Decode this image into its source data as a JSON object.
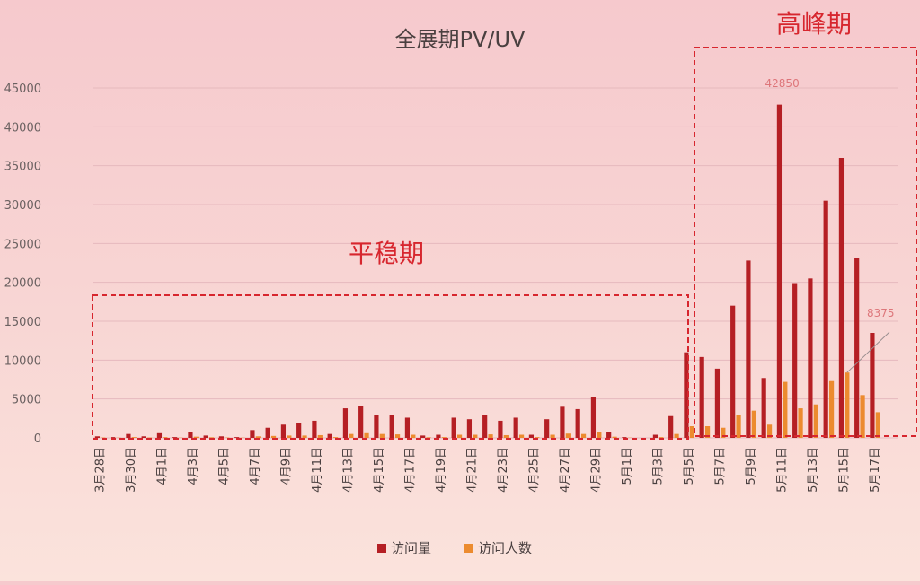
{
  "chart_data": {
    "type": "bar",
    "title": "全展期PV/UV",
    "xlabel": "",
    "ylabel": "",
    "ylim": [
      0,
      45000
    ],
    "yticks": [
      "0",
      "5000",
      "10000",
      "15000",
      "20000",
      "25000",
      "30000",
      "35000",
      "40000",
      "45000"
    ],
    "grid": true,
    "legend_position": "bottom",
    "categories": [
      "3月28日",
      "3月29日",
      "3月30日",
      "3月31日",
      "4月1日",
      "4月2日",
      "4月3日",
      "4月4日",
      "4月5日",
      "4月6日",
      "4月7日",
      "4月8日",
      "4月9日",
      "4月10日",
      "4月11日",
      "4月12日",
      "4月13日",
      "4月14日",
      "4月15日",
      "4月16日",
      "4月17日",
      "4月18日",
      "4月19日",
      "4月20日",
      "4月21日",
      "4月22日",
      "4月23日",
      "4月24日",
      "4月25日",
      "4月26日",
      "4月27日",
      "4月28日",
      "4月29日",
      "4月30日",
      "5月1日",
      "5月2日",
      "5月3日",
      "5月4日",
      "5月5日",
      "5月6日",
      "5月7日",
      "5月8日",
      "5月9日",
      "5月10日",
      "5月11日",
      "5月12日",
      "5月13日",
      "5月14日",
      "5月15日",
      "5月16日",
      "5月17日",
      "5月18日"
    ],
    "xtick_labels": [
      "3月28日",
      "3月30日",
      "4月1日",
      "4月3日",
      "4月5日",
      "4月7日",
      "4月9日",
      "4月11日",
      "4月13日",
      "4月15日",
      "4月17日",
      "4月19日",
      "4月21日",
      "4月23日",
      "4月25日",
      "4月27日",
      "4月29日",
      "5月1日",
      "5月3日",
      "5月5日",
      "5月7日",
      "5月9日",
      "5月11日",
      "5月13日",
      "5月15日",
      "5月17日"
    ],
    "series": [
      {
        "name": "访问量",
        "color": "#b51f24",
        "values": [
          200,
          100,
          500,
          200,
          600,
          100,
          800,
          300,
          200,
          100,
          1000,
          1300,
          1700,
          1900,
          2200,
          500,
          3800,
          4100,
          3000,
          2900,
          2600,
          300,
          400,
          2600,
          2400,
          3000,
          2200,
          2600,
          400,
          2400,
          4000,
          3700,
          5200,
          700,
          100,
          0,
          400,
          2800,
          11000,
          10400,
          8900,
          17000,
          22800,
          7700,
          42850,
          19900,
          20500,
          30500,
          36000,
          23100,
          13500,
          0
        ]
      },
      {
        "name": "访问人数",
        "color": "#ec8b2f",
        "values": [
          50,
          30,
          100,
          50,
          100,
          30,
          150,
          80,
          50,
          30,
          200,
          250,
          300,
          300,
          350,
          100,
          500,
          600,
          500,
          450,
          400,
          80,
          100,
          400,
          400,
          450,
          350,
          400,
          100,
          400,
          550,
          500,
          700,
          150,
          30,
          0,
          100,
          500,
          1500,
          1500,
          1300,
          3000,
          3500,
          1700,
          7200,
          3800,
          4300,
          7300,
          8400,
          5500,
          3300,
          0
        ]
      }
    ],
    "annotations": [
      {
        "text": "42850"
      },
      {
        "text": "8375"
      }
    ],
    "regions": [
      {
        "label": "平稳期",
        "from": "3月28日",
        "to": "5月4日"
      },
      {
        "label": "高峰期",
        "from": "5月5日",
        "to": "5月18日"
      }
    ]
  }
}
